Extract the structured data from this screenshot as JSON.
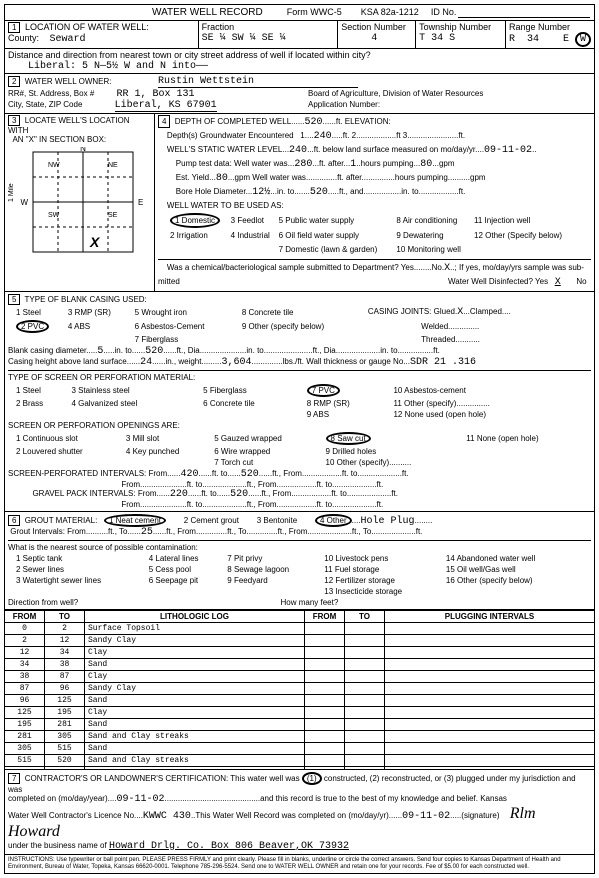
{
  "form": {
    "title": "WATER WELL RECORD",
    "form_no": "Form WWC-5",
    "ksa": "KSA 82a-1212",
    "id_label": "ID No."
  },
  "header": {
    "loc_label": "LOCATION OF WATER WELL:",
    "county_label": "County:",
    "county": "Seward",
    "fraction_label": "Fraction",
    "fraction": "SE ¼   SW   ¼   SE    ¼",
    "section_label": "Section Number",
    "section": "4",
    "township_label": "Township Number",
    "township": "T    34        S",
    "range_label": "Range Number",
    "range": "R   34        E  W",
    "dist_label": "Distance and direction from nearest town or city street address of well if located within city?",
    "dist": "Liberal:  5 N—5½ W and N into——"
  },
  "owner": {
    "label": "WATER WELL OWNER:",
    "name": "Rustin Wettstein",
    "addr_label": "RR#, St. Address, Box #",
    "addr": "RR 1,  Box 131",
    "city_label": "City, State, ZIP Code",
    "city": "Liberal,  KS   67901",
    "board": "Board of Agriculture, Division of Water Resources",
    "app_label": "Application Number:"
  },
  "locate": {
    "label": "LOCATE WELL'S LOCATION WITH AN \"X\" IN SECTION BOX:"
  },
  "depth": {
    "label": "DEPTH OF COMPLETED WELL",
    "depth": "520",
    "elev_label": "ft. ELEVATION:",
    "encountered_label": "Depth(s) Groundwater Encountered",
    "d1": "1",
    "d1v": "240",
    "d2": "ft. 2",
    "d3": "ft  3",
    "static_label": "WELL'S STATIC WATER LEVEL",
    "static": "240",
    "static_tail": "ft. below land surface measured on mo/day/yr",
    "static_date": "09-11-02",
    "pump_label": "Pump test data: Well water was",
    "pump_v": "280",
    "pump_tail": "ft. after",
    "pump_hrs_v": "1",
    "pump_tail2": "hours pumping",
    "pump_gpm": "80",
    "gpm": "gpm",
    "est_label": "Est. Yield",
    "est_v": "80",
    "est_tail": "gpm   Well water was",
    "est_tail2": "ft. after",
    "est_tail3": "hours pumping",
    "est_tail4": "gpm",
    "bore_label": "Bore Hole Diameter",
    "bore_v": "12½",
    "bore_tail": "in. to",
    "bore_to": "520",
    "bore_tail2": "ft., and",
    "bore_tail3": "in. to",
    "bore_tail4": "ft.",
    "use_label": "WELL WATER TO BE USED AS:",
    "use1": "1 Domestic",
    "use2": "2 Irrigation",
    "use3": "3 Feedlot",
    "use4": "4 Industrial",
    "use5": "5 Public water supply",
    "use6": "6 Oil field water supply",
    "use7": "7 Domestic (lawn & garden)",
    "use8": "8 Air conditioning",
    "use9": "9 Dewatering",
    "use10": "10 Monitoring well",
    "use11": "11 Injection well",
    "use12": "12 Other (Specify below)",
    "bact_label": "Was a chemical/bacteriological sample submitted to Department?  Yes",
    "bact_no": "No",
    "bact_x": "X",
    "bact_tail": "; If yes, mo/day/yrs sample was sub-",
    "mitted": "mitted",
    "disinfect": "Water Well Disinfected?   Yes",
    "dis_x": "X",
    "dis_no": "No"
  },
  "casing": {
    "label": "TYPE OF BLANK CASING USED:",
    "c1": "1 Steel",
    "c2": "2 PVC",
    "c3": "3 RMP (SR)",
    "c4": "4 ABS",
    "c5": "5 Wrought iron",
    "c6": "6 Asbestos-Cement",
    "c7": "7 Fiberglass",
    "c8": "8 Concrete tile",
    "c9": "9 Other (specify below)",
    "joints": "CASING JOINTS: Glued",
    "jx": "X",
    "clamped": "Clamped",
    "welded": "Welded",
    "threaded": "Threaded",
    "diam_label": "Blank casing diameter",
    "diam": "5",
    "diam_tail": "in. to",
    "diam_to": "520",
    "diam_tail2": "ft., Dia",
    "diam_tail3": "in. to",
    "diam_tail4": "ft., Dia",
    "diam_tail5": "in. to",
    "diam_tail6": "ft.",
    "height_label": "Casing height above land surface",
    "height": "24",
    "height_tail": "in., weight",
    "weight": "3,604",
    "height_tail2": "lbs./ft. Wall thickness or gauge No.",
    "gauge": "SDR 21   .316"
  },
  "screen": {
    "label": "TYPE OF SCREEN OR PERFORATION MATERIAL:",
    "s1": "1 Steel",
    "s2": "2 Brass",
    "s3": "3 Stainless steel",
    "s4": "4 Galvanized steel",
    "s5": "5 Fiberglass",
    "s6": "6 Concrete tile",
    "s7": "7 PVC",
    "s8": "8 RMP (SR)",
    "s9": "9 ABS",
    "s10": "10 Asbestos-cement",
    "s11": "11 Other (specify)",
    "s12": "12 None used (open hole)",
    "open_label": "SCREEN OR PERFORATION OPENINGS ARE:",
    "o1": "1 Continuous slot",
    "o2": "2 Louvered shutter",
    "o3": "3 Mill slot",
    "o4": "4 Key punched",
    "o5": "5 Gauzed wrapped",
    "o6": "6 Wire wrapped",
    "o7": "7 Torch cut",
    "o8": "8 Saw cut",
    "o9": "9 Drilled holes",
    "o10": "10 Other (specify)",
    "o11": "11 None (open hole)",
    "perf_label": "SCREEN-PERFORATED INTERVALS:   From",
    "pf1": "420",
    "pt1": "520",
    "ft_to": "ft. to",
    "ft_from": "ft., From",
    "ft": "ft.",
    "gravel_label": "GRAVEL PACK INTERVALS:   From",
    "gf1": "220",
    "gt1": "520"
  },
  "grout": {
    "label": "GROUT MATERIAL:",
    "g1": "1 Neat cement",
    "g2": "2 Cement grout",
    "g3": "3 Bentonite",
    "g4": "4 Other",
    "g4v": "Hole Plug",
    "int_label": "Grout Intervals:   From",
    "gt": "25",
    "ft_to": "ft., To",
    "ft_from": "ft., From",
    "contam_label": "What is the nearest source of possible contamination:",
    "c1": "1 Septic tank",
    "c2": "2 Sewer lines",
    "c3": "3 Watertight sewer lines",
    "c4": "4 Lateral lines",
    "c5": "5 Cess pool",
    "c6": "6 Seepage pit",
    "c7": "7 Pit privy",
    "c8": "8 Sewage lagoon",
    "c9": "9 Feedyard",
    "c10": "10 Livestock pens",
    "c11": "11 Fuel storage",
    "c12": "12 Fertilizer storage",
    "c13": "13 Insecticide storage",
    "c14": "14 Abandoned water well",
    "c15": "15 Oil well/Gas well",
    "c16": "16 Other (specify below)",
    "dir_label": "Direction from well?",
    "howmany": "How many feet?"
  },
  "log": {
    "from": "FROM",
    "to": "TO",
    "lith": "LITHOLOGIC LOG",
    "plug": "PLUGGING INTERVALS",
    "rows": [
      {
        "f": "0",
        "t": "2",
        "l": "Surface Topsoil"
      },
      {
        "f": "2",
        "t": "12",
        "l": "Sandy Clay"
      },
      {
        "f": "12",
        "t": "34",
        "l": "Clay"
      },
      {
        "f": "34",
        "t": "38",
        "l": "Sand"
      },
      {
        "f": "38",
        "t": "87",
        "l": "Clay"
      },
      {
        "f": "87",
        "t": "96",
        "l": "Sandy Clay"
      },
      {
        "f": "96",
        "t": "125",
        "l": "Sand"
      },
      {
        "f": "125",
        "t": "195",
        "l": "Clay"
      },
      {
        "f": "195",
        "t": "281",
        "l": "Sand"
      },
      {
        "f": "281",
        "t": "305",
        "l": "Sand and Clay streaks"
      },
      {
        "f": "305",
        "t": "515",
        "l": "Sand"
      },
      {
        "f": "515",
        "t": "520",
        "l": "Sand and Clay streaks"
      },
      {
        "f": "",
        "t": "",
        "l": ""
      }
    ]
  },
  "cert": {
    "label": "CONTRACTOR'S OR LANDOWNER'S CERTIFICATION: This water well was",
    "c1": "(1) constructed, (2) reconstructed, or (3) plugged under my jurisdiction and was",
    "completed_label": "completed on (mo/day/year)",
    "completed": "09-11-02",
    "tail": "and this record is true to the best of my knowledge and belief. Kansas",
    "lic_label": "Water Well Contractor's Licence No.",
    "lic": "KWWC   430",
    "lic_tail": "This Water Well Record was completed on (mo/day/yr)",
    "lic_date": "09-11-02",
    "sig_label": "(signature)",
    "biz_label": "under the business name of",
    "biz": "Howard Drlg. Co.   Box 806   Beaver,OK   73932"
  },
  "footer": "INSTRUCTIONS: Use typewriter or ball point pen. PLEASE PRESS FIRMLY and print clearly. Please fill in blanks, underline or circle the correct answers. Send four copies to Kansas Department of Health and Environment, Bureau of Water, Topeka, Kansas 66620-0001. Telephone 785-296-5524. Send one to WATER WELL OWNER and retain one for your records. Fee of $5.00 for each constructed well."
}
